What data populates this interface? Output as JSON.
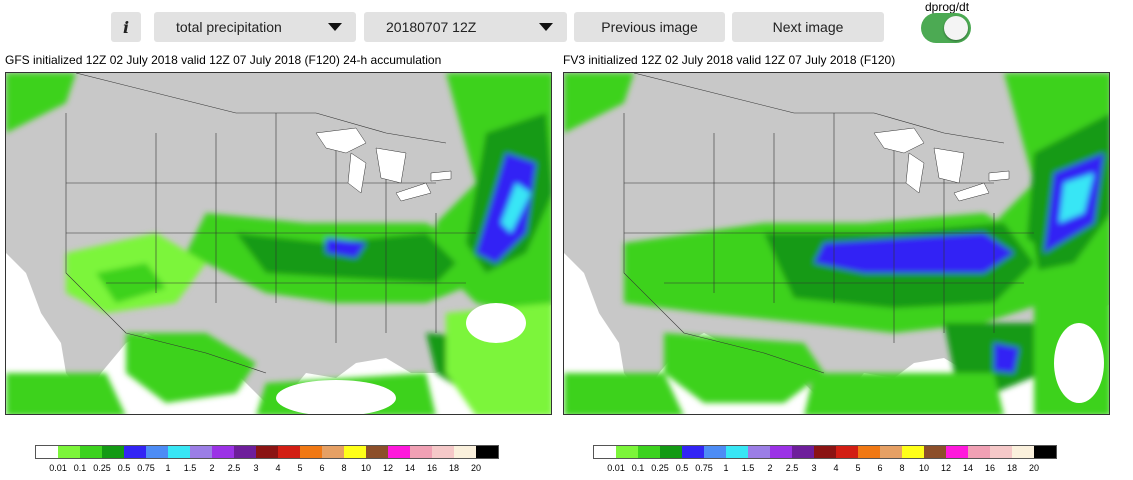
{
  "controls": {
    "info_label": "i",
    "field_select": "total precipitation",
    "date_select": "20180707 12Z",
    "prev_label": "Previous image",
    "next_label": "Next image",
    "toggle_label": "dprog/dt",
    "toggle_on": true
  },
  "panels": [
    {
      "title": "GFS initialized 12Z 02 July 2018 valid 12Z 07 July 2018 (F120) 24-h accumulation"
    },
    {
      "title": "FV3 initialized 12Z 02 July 2018 valid 12Z 07 July 2018 (F120)"
    }
  ],
  "colorbar": {
    "colors": [
      "#ffffff",
      "#7cf53a",
      "#3cd21e",
      "#139a14",
      "#3224f5",
      "#4d8cf5",
      "#38e6f5",
      "#9b7ee6",
      "#9b32e6",
      "#6e1e9b",
      "#8b1414",
      "#d21e14",
      "#f07814",
      "#e6a064",
      "#ffff19",
      "#8c4f2a",
      "#ff19dc",
      "#f0a0b4",
      "#f5c8c8",
      "#faf0dc",
      "#000000"
    ],
    "labels": [
      "0.01",
      "0.1",
      "0.25",
      "0.5",
      "0.75",
      "1",
      "1.5",
      "2",
      "2.5",
      "3",
      "4",
      "5",
      "6",
      "8",
      "10",
      "12",
      "14",
      "16",
      "18",
      "20"
    ]
  }
}
